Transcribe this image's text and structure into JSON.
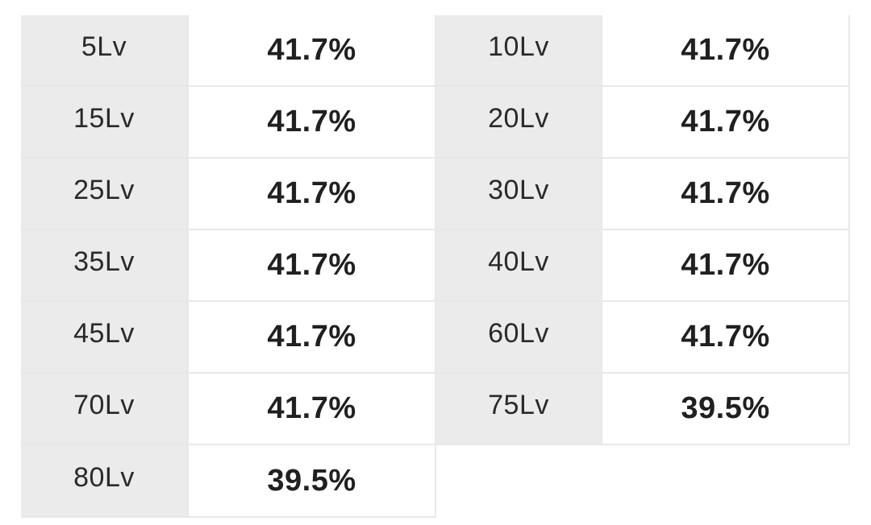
{
  "level_rate_table": {
    "rows": [
      [
        {
          "level": "5Lv",
          "rate": "41.7%"
        },
        {
          "level": "10Lv",
          "rate": "41.7%"
        }
      ],
      [
        {
          "level": "15Lv",
          "rate": "41.7%"
        },
        {
          "level": "20Lv",
          "rate": "41.7%"
        }
      ],
      [
        {
          "level": "25Lv",
          "rate": "41.7%"
        },
        {
          "level": "30Lv",
          "rate": "41.7%"
        }
      ],
      [
        {
          "level": "35Lv",
          "rate": "41.7%"
        },
        {
          "level": "40Lv",
          "rate": "41.7%"
        }
      ],
      [
        {
          "level": "45Lv",
          "rate": "41.7%"
        },
        {
          "level": "60Lv",
          "rate": "41.7%"
        }
      ],
      [
        {
          "level": "70Lv",
          "rate": "41.7%"
        },
        {
          "level": "75Lv",
          "rate": "39.5%"
        }
      ],
      [
        {
          "level": "80Lv",
          "rate": "39.5%"
        }
      ]
    ]
  }
}
